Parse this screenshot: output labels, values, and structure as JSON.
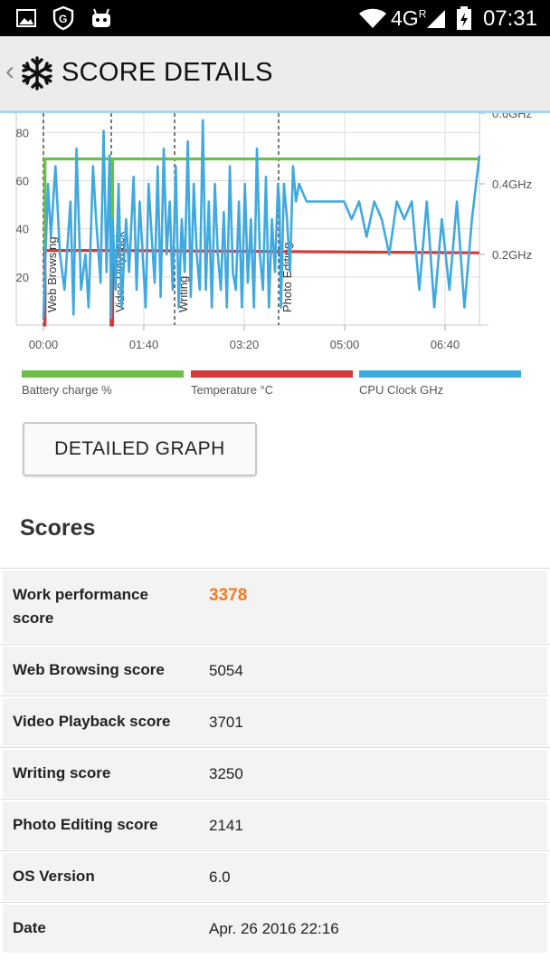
{
  "status": {
    "time": "07:31",
    "network": "4G",
    "network_sup": "R"
  },
  "header": {
    "title": "SCORE DETAILS"
  },
  "chart_data": {
    "type": "line",
    "xlabel": "",
    "ylabel": "",
    "x_ticks": [
      "00:00",
      "01:40",
      "03:20",
      "05:00",
      "06:40"
    ],
    "y_ticks_left": [
      "20",
      "40",
      "60",
      "80"
    ],
    "y_ticks_right": [
      "0.2GHz",
      "0.4GHz",
      "0.6GHz"
    ],
    "ylim_left": [
      0,
      88
    ],
    "ylim_right_ghz": [
      0,
      0.6
    ],
    "grid": true,
    "sections": [
      {
        "label": "Web Browsing",
        "t": 0
      },
      {
        "label": "Video Playback",
        "t": 45
      },
      {
        "label": "Writing",
        "t": 87
      },
      {
        "label": "Photo Editing",
        "t": 157
      }
    ],
    "series": [
      {
        "name": "Battery charge %",
        "color": "#6cc04a",
        "x": [
          0,
          1,
          1,
          45,
          45,
          46,
          46,
          290
        ],
        "y": [
          0,
          0,
          69,
          69,
          0,
          0,
          69,
          69
        ]
      },
      {
        "name": "Temperature °C",
        "color": "#d33a3a",
        "x": [
          0,
          1,
          1,
          45,
          45,
          46,
          46,
          290
        ],
        "y": [
          0,
          0,
          31,
          31,
          0,
          0,
          31,
          30
        ]
      },
      {
        "name": "CPU Clock GHz",
        "color": "#3fa9e0",
        "x": [
          0,
          3,
          5,
          8,
          11,
          14,
          18,
          20,
          22,
          25,
          28,
          30,
          33,
          35,
          38,
          40,
          42,
          44,
          45,
          46,
          48,
          50,
          52,
          55,
          57,
          60,
          62,
          64,
          66,
          68,
          70,
          72,
          74,
          76,
          78,
          80,
          82,
          84,
          86,
          88,
          90,
          92,
          94,
          96,
          98,
          100,
          102,
          104,
          106,
          108,
          110,
          112,
          114,
          116,
          118,
          120,
          122,
          124,
          126,
          128,
          130,
          132,
          134,
          136,
          138,
          140,
          142,
          144,
          146,
          148,
          150,
          152,
          154,
          156,
          157,
          158,
          160,
          162,
          164,
          166,
          168,
          170,
          175,
          180,
          190,
          200,
          205,
          210,
          215,
          220,
          225,
          230,
          235,
          240,
          245,
          250,
          255,
          260,
          265,
          270,
          275,
          280,
          285,
          290
        ],
        "y": [
          0.02,
          0.4,
          0.25,
          0.45,
          0.2,
          0.1,
          0.35,
          0.03,
          0.5,
          0.1,
          0.2,
          0.05,
          0.45,
          0.3,
          0.12,
          0.55,
          0.15,
          0.48,
          0.02,
          0.3,
          0.1,
          0.4,
          0.05,
          0.3,
          0.15,
          0.42,
          0.1,
          0.35,
          0.2,
          0.05,
          0.4,
          0.25,
          0.12,
          0.45,
          0.08,
          0.5,
          0.2,
          0.35,
          0.1,
          0.45,
          0.05,
          0.3,
          0.15,
          0.52,
          0.08,
          0.4,
          0.2,
          0.1,
          0.58,
          0.1,
          0.35,
          0.05,
          0.4,
          0.2,
          0.1,
          0.32,
          0.05,
          0.45,
          0.15,
          0.1,
          0.35,
          0.05,
          0.4,
          0.12,
          0.3,
          0.05,
          0.5,
          0.2,
          0.1,
          0.42,
          0.05,
          0.3,
          0.15,
          0.4,
          0.35,
          0.05,
          0.4,
          0.3,
          0.15,
          0.45,
          0.35,
          0.4,
          0.35,
          0.35,
          0.35,
          0.35,
          0.3,
          0.35,
          0.25,
          0.35,
          0.3,
          0.2,
          0.35,
          0.3,
          0.35,
          0.1,
          0.35,
          0.05,
          0.3,
          0.1,
          0.35,
          0.05,
          0.3,
          0.48
        ]
      }
    ]
  },
  "legend": [
    {
      "label": "Battery charge %",
      "color": "#6cc04a"
    },
    {
      "label": "Temperature °C",
      "color": "#d33a3a"
    },
    {
      "label": "CPU Clock GHz",
      "color": "#3fa9e0"
    }
  ],
  "detailed_graph_button": "DETAILED GRAPH",
  "scores": {
    "title": "Scores",
    "rows": [
      {
        "label": "Work performance score",
        "value": "3378"
      },
      {
        "label": "Web Browsing score",
        "value": "5054"
      },
      {
        "label": "Video Playback score",
        "value": "3701"
      },
      {
        "label": "Writing score",
        "value": "3250"
      },
      {
        "label": "Photo Editing score",
        "value": "2141"
      },
      {
        "label": "OS Version",
        "value": "6.0"
      },
      {
        "label": "Date",
        "value": "Apr. 26 2016 22:16"
      }
    ]
  }
}
